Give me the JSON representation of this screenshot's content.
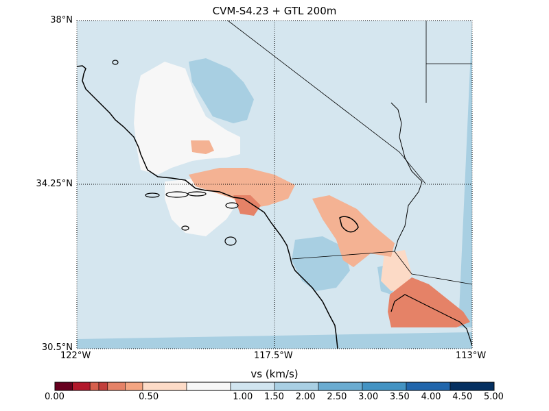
{
  "map": {
    "title": "CVM-S4.23 + GTL 200m",
    "lat_labels": [
      "38°N",
      "34.25°N",
      "30.5°N"
    ],
    "lon_labels": [
      "122°W",
      "117.5°W",
      "113°W"
    ],
    "extent": {
      "lon_min": -122,
      "lon_max": -113,
      "lat_min": 30.5,
      "lat_max": 38
    },
    "graticule": {
      "lons": [
        -117.5
      ],
      "lats": [
        34.25
      ],
      "style": "dotted"
    }
  },
  "colorbar": {
    "title": "vs (km/s)",
    "tick_labels": [
      "0.00",
      "0.50",
      "1.00",
      "1.50",
      "2.00",
      "2.50",
      "3.00",
      "3.50",
      "4.00",
      "4.50",
      "5.00"
    ],
    "bounds": [
      0.0,
      0.2,
      0.4,
      0.5,
      0.6,
      0.8,
      1.0,
      1.5,
      2.0,
      2.5,
      3.0,
      3.5,
      4.0,
      4.5,
      5.0
    ],
    "colors": [
      "#67001f",
      "#b2182b",
      "#d6604d",
      "#c23f3c",
      "#e58267",
      "#f4a582",
      "#fddbc7",
      "#f7f7f7",
      "#d1e5f0",
      "#a9cfe3",
      "#6bacd1",
      "#4393c3",
      "#2166ac",
      "#053061"
    ]
  },
  "field_colors": {
    "background": "#d5e6ef",
    "very_light": "#f7f7f7",
    "light_salmon": "#fcdac6",
    "salmon": "#f4b293",
    "dark_salmon": "#e58267",
    "light_blue": "#a8cfe2"
  }
}
